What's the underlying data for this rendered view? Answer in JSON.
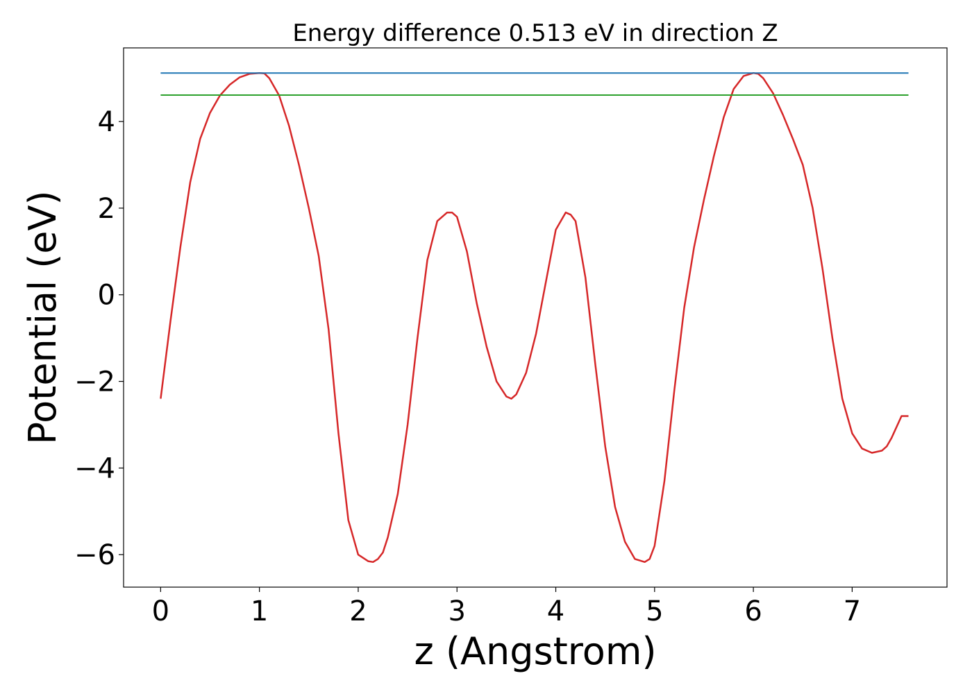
{
  "chart_data": {
    "type": "line",
    "title": "Energy difference 0.513 eV in direction Z",
    "xlabel": "z (Angstrom)",
    "ylabel": "Potential (eV)",
    "xlim": [
      -0.375,
      7.96
    ],
    "ylim": [
      -6.75,
      5.7
    ],
    "xticks": [
      0,
      1,
      2,
      3,
      4,
      5,
      6,
      7
    ],
    "xtick_labels": [
      "0",
      "1",
      "2",
      "3",
      "4",
      "5",
      "6",
      "7"
    ],
    "yticks": [
      4,
      2,
      0,
      -2,
      -4,
      -6
    ],
    "ytick_labels": [
      "4",
      "2",
      "0",
      "−2",
      "−4",
      "−6"
    ],
    "grid": false,
    "legend": "none",
    "series": [
      {
        "color": "#d62728",
        "x": [
          0.0,
          0.1,
          0.2,
          0.3,
          0.4,
          0.5,
          0.6,
          0.7,
          0.8,
          0.9,
          1.0,
          1.05,
          1.1,
          1.2,
          1.3,
          1.4,
          1.5,
          1.6,
          1.7,
          1.8,
          1.9,
          2.0,
          2.1,
          2.15,
          2.2,
          2.25,
          2.3,
          2.4,
          2.5,
          2.6,
          2.7,
          2.8,
          2.9,
          2.95,
          3.0,
          3.1,
          3.2,
          3.3,
          3.4,
          3.5,
          3.55,
          3.6,
          3.7,
          3.8,
          3.9,
          4.0,
          4.1,
          4.15,
          4.2,
          4.3,
          4.4,
          4.5,
          4.6,
          4.7,
          4.8,
          4.9,
          4.95,
          5.0,
          5.1,
          5.2,
          5.3,
          5.4,
          5.5,
          5.6,
          5.7,
          5.8,
          5.9,
          6.0,
          6.05,
          6.1,
          6.2,
          6.3,
          6.4,
          6.5,
          6.6,
          6.7,
          6.8,
          6.9,
          7.0,
          7.1,
          7.2,
          7.3,
          7.35,
          7.4,
          7.5,
          7.57
        ],
        "y": [
          -2.4,
          -0.6,
          1.1,
          2.6,
          3.6,
          4.2,
          4.6,
          4.85,
          5.02,
          5.1,
          5.12,
          5.11,
          5.0,
          4.6,
          3.9,
          3.0,
          2.0,
          0.9,
          -0.8,
          -3.2,
          -5.2,
          -6.0,
          -6.15,
          -6.17,
          -6.1,
          -5.95,
          -5.6,
          -4.6,
          -3.0,
          -1.0,
          0.8,
          1.7,
          1.9,
          1.9,
          1.8,
          1.0,
          -0.2,
          -1.2,
          -2.0,
          -2.35,
          -2.4,
          -2.3,
          -1.8,
          -0.9,
          0.3,
          1.5,
          1.9,
          1.85,
          1.7,
          0.4,
          -1.6,
          -3.5,
          -4.9,
          -5.7,
          -6.1,
          -6.17,
          -6.1,
          -5.8,
          -4.3,
          -2.2,
          -0.3,
          1.1,
          2.2,
          3.2,
          4.1,
          4.75,
          5.05,
          5.12,
          5.1,
          5.0,
          4.65,
          4.15,
          3.6,
          3.0,
          2.0,
          0.6,
          -1.0,
          -2.4,
          -3.2,
          -3.55,
          -3.65,
          -3.6,
          -3.5,
          -3.3,
          -2.8,
          -2.8
        ]
      },
      {
        "color": "#1f77b4",
        "x": [
          0.0,
          7.57
        ],
        "y": [
          5.12,
          5.12
        ]
      },
      {
        "color": "#2ca02c",
        "x": [
          0.0,
          7.57
        ],
        "y": [
          4.61,
          4.61
        ]
      }
    ]
  }
}
